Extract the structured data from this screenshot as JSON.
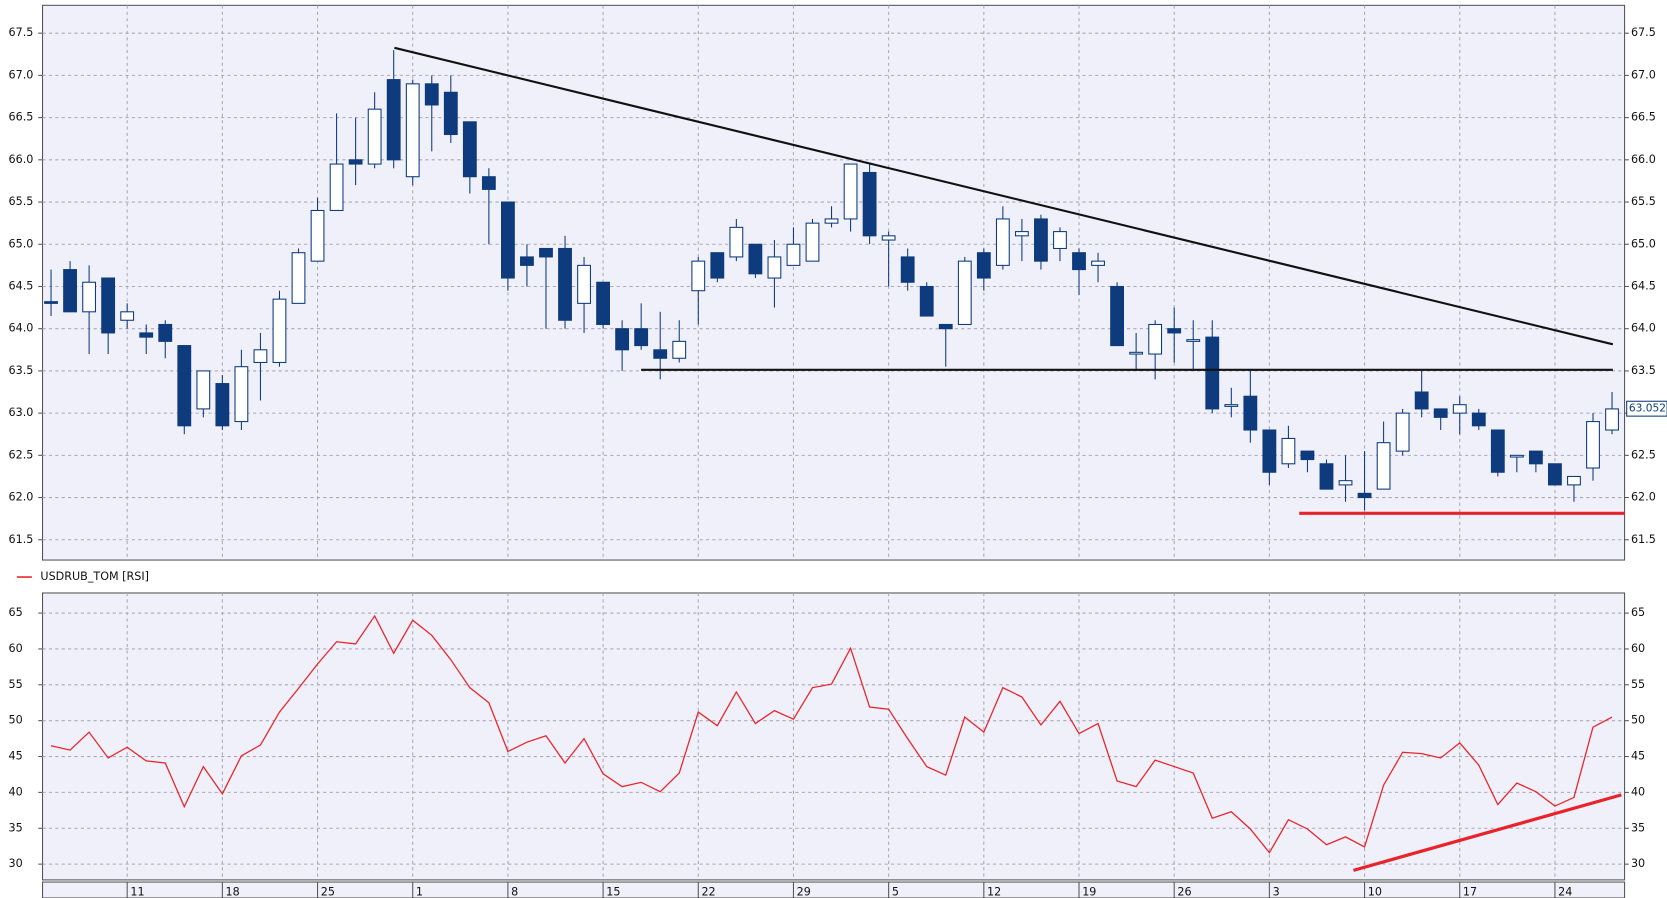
{
  "chart_data": [
    {
      "type": "candlestick",
      "color": "#0d3b7d",
      "open": [
        64.32,
        64.7,
        64.2,
        64.6,
        64.1,
        63.95,
        64.05,
        63.8,
        63.05,
        63.35,
        62.9,
        63.6,
        63.6,
        64.3,
        64.8,
        65.4,
        66.0,
        65.95,
        66.95,
        65.8,
        66.9,
        66.8,
        66.45,
        65.8,
        65.5,
        64.85,
        64.95,
        64.95,
        64.3,
        64.55,
        64.0,
        64.0,
        63.75,
        63.65,
        64.45,
        64.9,
        64.85,
        65.0,
        64.6,
        64.75,
        64.8,
        65.25,
        65.3,
        65.85,
        65.05,
        64.85,
        64.5,
        64.05,
        64.05,
        64.9,
        64.75,
        65.1,
        65.3,
        64.95,
        64.9,
        64.75,
        64.5,
        63.7,
        63.7,
        64.0,
        63.85,
        63.9,
        63.08,
        63.2,
        62.8,
        62.4,
        62.55,
        62.4,
        62.15,
        62.05,
        62.1,
        62.55,
        63.25,
        63.05,
        63.0,
        63.0,
        62.8,
        62.48,
        62.55,
        62.4,
        62.15,
        62.35,
        62.8
      ],
      "high": [
        64.7,
        64.8,
        64.75,
        64.6,
        64.3,
        64.05,
        64.1,
        63.8,
        63.5,
        63.45,
        63.75,
        63.95,
        64.45,
        64.95,
        65.55,
        66.55,
        66.5,
        66.8,
        67.3,
        66.95,
        67.0,
        67.0,
        66.45,
        65.9,
        65.5,
        65.0,
        64.95,
        65.1,
        64.85,
        64.55,
        64.1,
        64.3,
        64.2,
        64.1,
        64.85,
        64.9,
        65.3,
        65.0,
        65.05,
        65.2,
        65.3,
        65.45,
        65.95,
        65.95,
        65.15,
        64.95,
        64.55,
        64.05,
        64.85,
        64.95,
        65.45,
        65.3,
        65.35,
        65.2,
        64.95,
        64.9,
        64.55,
        63.95,
        64.1,
        64.25,
        64.1,
        64.1,
        63.3,
        63.5,
        62.8,
        62.85,
        62.55,
        62.45,
        62.5,
        62.55,
        62.9,
        63.05,
        63.5,
        63.05,
        63.2,
        63.05,
        62.8,
        62.5,
        62.55,
        62.4,
        62.25,
        63.0,
        63.25
      ],
      "low": [
        64.15,
        64.2,
        63.7,
        63.7,
        64.0,
        63.7,
        63.65,
        62.75,
        62.95,
        62.8,
        62.8,
        63.15,
        63.55,
        64.3,
        64.8,
        65.4,
        65.7,
        65.9,
        65.9,
        65.7,
        66.1,
        66.2,
        65.6,
        65.0,
        64.45,
        64.5,
        64.0,
        64.0,
        63.95,
        64.0,
        63.5,
        63.75,
        63.4,
        63.6,
        64.05,
        64.55,
        64.8,
        64.6,
        64.25,
        64.75,
        64.8,
        65.2,
        65.15,
        65.0,
        64.5,
        64.45,
        64.15,
        63.55,
        64.05,
        64.45,
        64.7,
        64.8,
        64.7,
        64.8,
        64.4,
        64.55,
        63.8,
        63.5,
        63.4,
        63.6,
        63.5,
        63.0,
        62.95,
        62.65,
        62.15,
        62.35,
        62.3,
        62.1,
        61.95,
        61.85,
        62.1,
        62.5,
        62.95,
        62.8,
        62.75,
        62.8,
        62.25,
        62.3,
        62.3,
        62.15,
        61.95,
        62.2,
        62.75
      ],
      "close": [
        64.3,
        64.2,
        64.55,
        63.95,
        64.2,
        63.9,
        63.85,
        62.85,
        63.5,
        62.85,
        63.55,
        63.75,
        64.35,
        64.9,
        65.4,
        65.95,
        65.95,
        66.6,
        66.0,
        66.9,
        66.65,
        66.3,
        65.8,
        65.65,
        64.6,
        64.75,
        64.85,
        64.1,
        64.75,
        64.05,
        63.75,
        63.8,
        63.65,
        63.85,
        64.8,
        64.6,
        65.2,
        64.65,
        64.85,
        65.0,
        65.25,
        65.3,
        65.95,
        65.1,
        65.1,
        64.55,
        64.15,
        64.0,
        64.8,
        64.6,
        65.3,
        65.15,
        64.8,
        65.15,
        64.7,
        64.8,
        63.8,
        63.72,
        64.05,
        63.95,
        63.87,
        63.05,
        63.1,
        62.8,
        62.3,
        62.7,
        62.45,
        62.1,
        62.2,
        62.0,
        62.65,
        63.0,
        63.05,
        62.95,
        63.1,
        62.85,
        62.3,
        62.5,
        62.4,
        62.15,
        62.25,
        62.9,
        63.05
      ],
      "last_price": 63.0525,
      "ylim": [
        61.26,
        67.83
      ],
      "yticks": [
        61.5,
        {
          "value": 62,
          "label": "62.0"
        },
        62.5,
        {
          "value": 63,
          "label": "63.0"
        },
        63.5,
        {
          "value": 64,
          "label": "64.0"
        },
        64.5,
        {
          "value": 65,
          "label": "65.0"
        },
        65.5,
        {
          "value": 66,
          "label": "66.0"
        },
        66.5,
        {
          "value": 67,
          "label": "67.0"
        },
        67.5
      ],
      "grid": true
    },
    {
      "type": "line",
      "categories": [
        null,
        null,
        null,
        null,
        "11",
        null,
        null,
        null,
        null,
        "18",
        null,
        null,
        null,
        null,
        "25",
        null,
        null,
        null,
        null,
        "1",
        null,
        null,
        null,
        null,
        "8",
        null,
        null,
        null,
        null,
        "15",
        null,
        null,
        null,
        null,
        "22",
        null,
        null,
        null,
        null,
        "29",
        null,
        null,
        null,
        null,
        "5",
        null,
        null,
        null,
        null,
        "12",
        null,
        null,
        null,
        null,
        "19",
        null,
        null,
        null,
        null,
        "26",
        null,
        null,
        null,
        null,
        "3",
        null,
        null,
        null,
        null,
        "10",
        null,
        null,
        null,
        null,
        "17",
        null,
        null,
        null,
        null,
        "24",
        null,
        null,
        null
      ],
      "series": [
        {
          "name": "USDRUB_TOM [RSI]",
          "color": "#e8242a",
          "values": [
            46.5,
            45.9,
            48.4,
            44.8,
            46.3,
            44.4,
            44.1,
            38.0,
            43.6,
            39.8,
            45.1,
            46.6,
            51.2,
            54.5,
            57.9,
            61.0,
            60.7,
            64.6,
            59.4,
            64.0,
            61.9,
            58.5,
            54.6,
            52.5,
            45.7,
            47.0,
            47.9,
            44.1,
            47.5,
            42.6,
            40.8,
            41.4,
            40.1,
            42.7,
            51.2,
            49.3,
            54.0,
            49.6,
            51.4,
            50.2,
            54.6,
            55.1,
            60.1,
            51.9,
            51.6,
            47.5,
            43.6,
            42.4,
            50.5,
            48.4,
            54.6,
            53.3,
            49.4,
            52.7,
            48.2,
            49.6,
            41.6,
            40.8,
            44.5,
            43.6,
            42.7,
            36.4,
            37.3,
            34.9,
            31.6,
            36.2,
            34.9,
            32.7,
            33.8,
            32.4,
            41.0,
            45.6,
            45.4,
            44.8,
            46.9,
            43.8,
            38.3,
            41.3,
            40.1,
            38.1,
            39.3,
            49.1,
            50.5
          ]
        }
      ],
      "ylim": [
        27.8,
        67.8
      ],
      "yticks": [
        30,
        35,
        40,
        45,
        50,
        55,
        60,
        65
      ],
      "grid": true
    }
  ]
}
